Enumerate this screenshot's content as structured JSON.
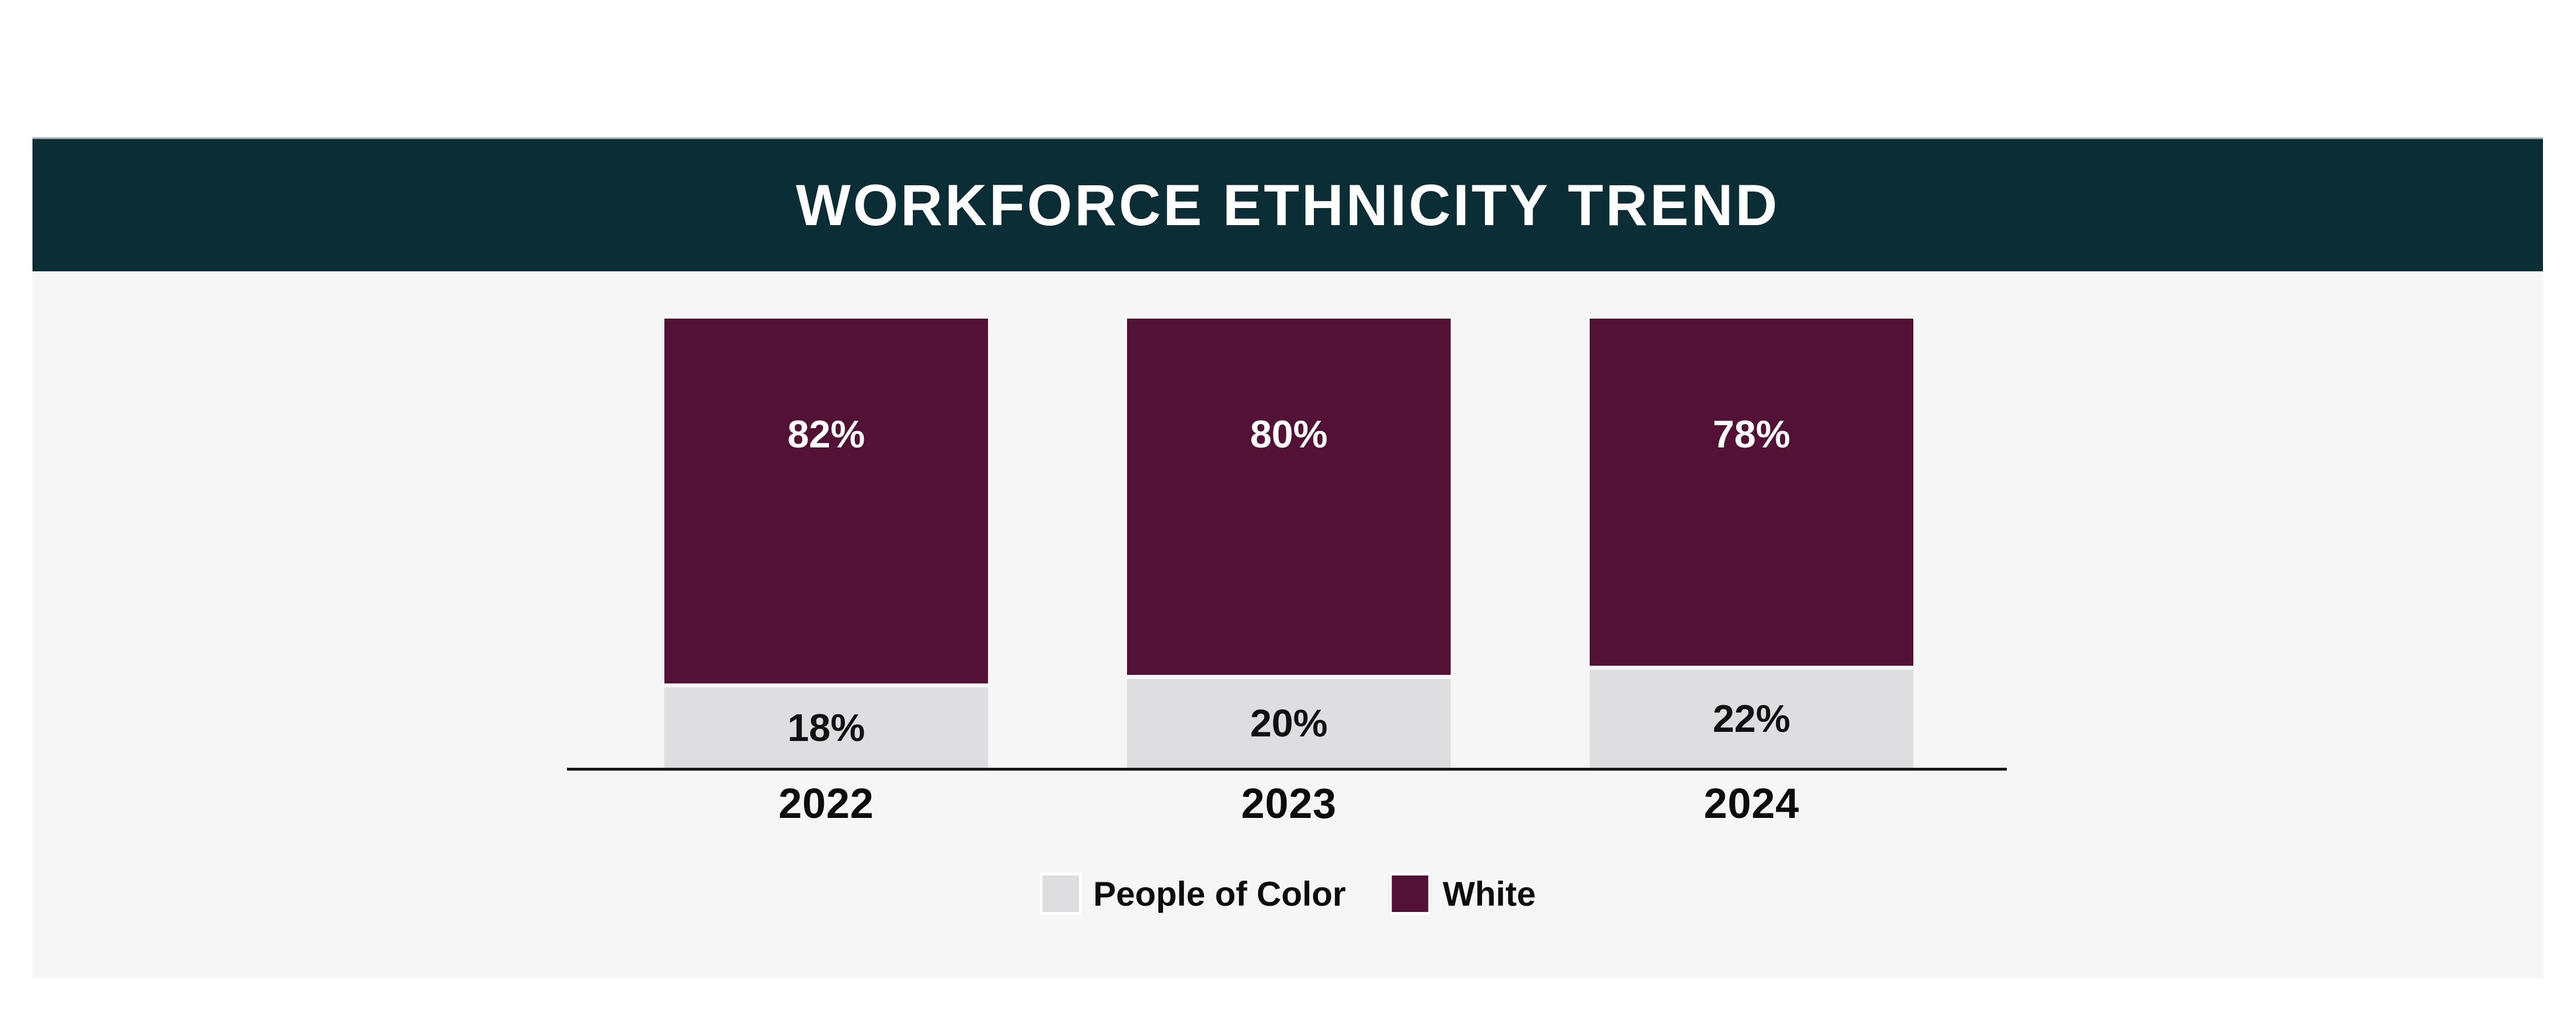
{
  "card": {
    "header": {
      "background": "#0b2e36",
      "top_border_color": "#9fb1b5",
      "title_color": "#ffffff"
    },
    "chart_background": "#f6f6f6"
  },
  "chart_data": {
    "type": "bar",
    "subtype": "stacked-percent",
    "title": "WORKFORCE ETHNICITY TREND",
    "categories": [
      "2022",
      "2023",
      "2024"
    ],
    "series": [
      {
        "name": "People of Color",
        "color": "#dedee0",
        "label_color": "#111111",
        "values": [
          18,
          20,
          22
        ],
        "labels": [
          "18%",
          "20%",
          "22%"
        ]
      },
      {
        "name": "White",
        "color": "#521135",
        "label_color": "#ffffff",
        "values": [
          82,
          80,
          78
        ],
        "labels": [
          "82%",
          "80%",
          "78%"
        ]
      }
    ],
    "ylim": [
      0,
      100
    ],
    "grid": false,
    "legend_position": "bottom",
    "axis": {
      "baseline_color": "#161616"
    }
  }
}
